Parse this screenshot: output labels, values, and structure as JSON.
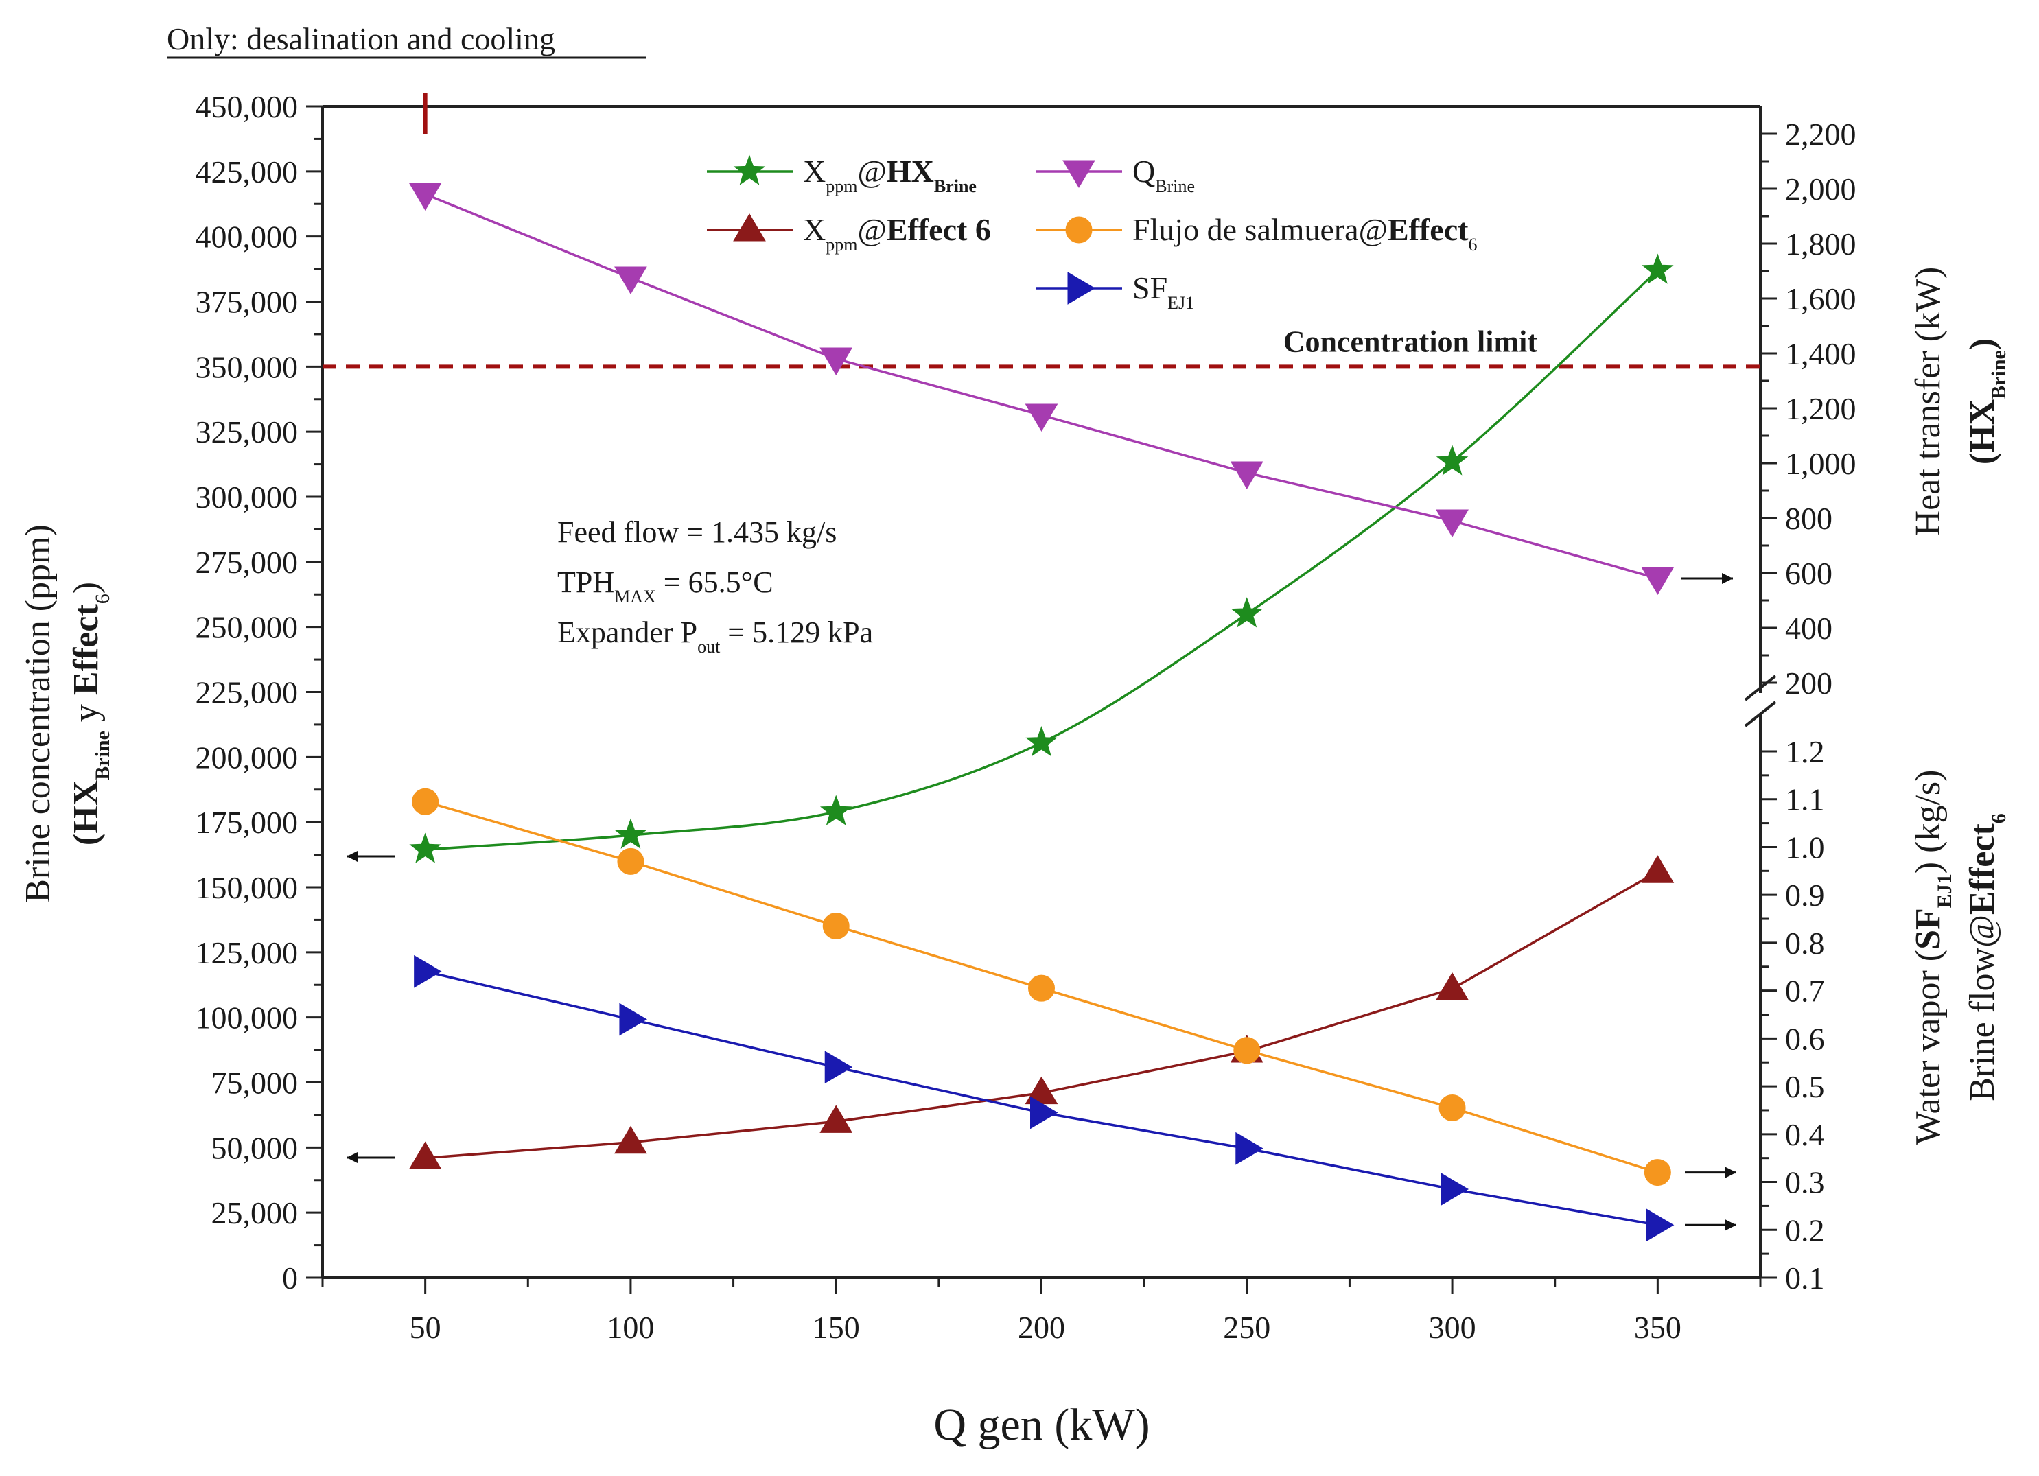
{
  "header": {
    "subtitle": "Only: desalination and cooling"
  },
  "chart_data": {
    "type": "line",
    "x": [
      50,
      100,
      150,
      200,
      250,
      300,
      350
    ],
    "xlabel": "Q gen (kW)",
    "xlim": [
      25,
      375
    ],
    "xticks": [
      50,
      100,
      150,
      200,
      250,
      300,
      350
    ],
    "y_left": {
      "label_line1": "Brine concentration (ppm)",
      "label_line2_parts": [
        "(HX",
        "Brine",
        " y ",
        "Effect",
        "6",
        ")"
      ],
      "lim": [
        0,
        450000
      ],
      "ticks": [
        0,
        25000,
        50000,
        75000,
        100000,
        125000,
        150000,
        175000,
        200000,
        225000,
        250000,
        275000,
        300000,
        325000,
        350000,
        375000,
        400000,
        425000,
        450000
      ],
      "tick_labels": [
        "0",
        "25,000",
        "50,000",
        "75,000",
        "100,000",
        "125,000",
        "150,000",
        "175,000",
        "200,000",
        "225,000",
        "250,000",
        "275,000",
        "300,000",
        "325,000",
        "350,000",
        "375,000",
        "400,000",
        "425,000",
        "450,000"
      ]
    },
    "y_right_upper": {
      "label_line1": "Heat transfer (kW)",
      "label_line2_parts": [
        "(HX",
        "Brine",
        ")"
      ],
      "ticks": [
        200,
        400,
        600,
        800,
        1000,
        1200,
        1400,
        1600,
        1800,
        2000,
        2200
      ],
      "tick_labels": [
        "200",
        "400",
        "600",
        "800",
        "1,000",
        "1,200",
        "1,400",
        "1,600",
        "1,800",
        "2,000",
        "2,200"
      ]
    },
    "y_right_lower": {
      "label_line1_parts": [
        "Water vapor (",
        "SF",
        "EJ1",
        ") (kg/s)"
      ],
      "label_line2_parts": [
        "Brine flow@",
        "Effect",
        "6"
      ],
      "ticks": [
        0.1,
        0.2,
        0.3,
        0.4,
        0.5,
        0.6,
        0.7,
        0.8,
        0.9,
        1.0,
        1.1,
        1.2
      ],
      "tick_labels": [
        "0.1",
        "0.2",
        "0.3",
        "0.4",
        "0.5",
        "0.6",
        "0.7",
        "0.8",
        "0.9",
        "1.0",
        "1.1",
        "1.2"
      ]
    },
    "series": [
      {
        "name": "X_ppm@HX_Brine",
        "legend_parts": [
          "X",
          "ppm",
          "@",
          "HX",
          "Brine"
        ],
        "axis": "left",
        "marker": "star",
        "color": "#1e8c1e",
        "values": [
          164500,
          170000,
          179000,
          205500,
          255000,
          313500,
          387000
        ]
      },
      {
        "name": "X_ppm@Effect 6",
        "legend_parts": [
          "X",
          "ppm",
          "@",
          "Effect 6"
        ],
        "axis": "left",
        "marker": "triangle-up",
        "color": "#8b1a1a",
        "values": [
          46000,
          52000,
          60000,
          71000,
          87000,
          111000,
          156000
        ]
      },
      {
        "name": "SF_EJ1",
        "legend_parts": [
          "SF",
          "EJ1"
        ],
        "axis": "right_lower",
        "marker": "triangle-right",
        "color": "#1a1ab0",
        "values": [
          0.74,
          0.64,
          0.54,
          0.445,
          0.37,
          0.285,
          0.21
        ]
      },
      {
        "name": "Q_Brine",
        "legend_parts": [
          "Q",
          "Brine"
        ],
        "axis": "right_upper",
        "marker": "triangle-down",
        "color": "#a63cb0",
        "values": [
          1980,
          1675,
          1380,
          1175,
          965,
          790,
          580
        ]
      },
      {
        "name": "Flujo de salmuera@Effect_6",
        "legend_parts": [
          "Flujo de salmuera@",
          "Effect",
          "6"
        ],
        "axis": "right_lower",
        "marker": "circle",
        "color": "#f5961e",
        "values": [
          1.095,
          0.97,
          0.835,
          0.705,
          0.575,
          0.455,
          0.32
        ]
      }
    ],
    "reference_line": {
      "label": "Concentration limit",
      "value": 350000,
      "axis": "left",
      "color": "#a01010",
      "style": "dashed"
    },
    "marker_line": {
      "x": 50,
      "color": "#a01010"
    },
    "annotations": [
      {
        "parts": [
          "Feed flow = 1.435 kg/s"
        ]
      },
      {
        "parts": [
          "TPH",
          "MAX",
          " = 65.5°C"
        ]
      },
      {
        "parts": [
          "Expander P",
          "out",
          " = 5.129 kPa"
        ]
      }
    ],
    "legend_position": "top-center",
    "grid": false
  }
}
